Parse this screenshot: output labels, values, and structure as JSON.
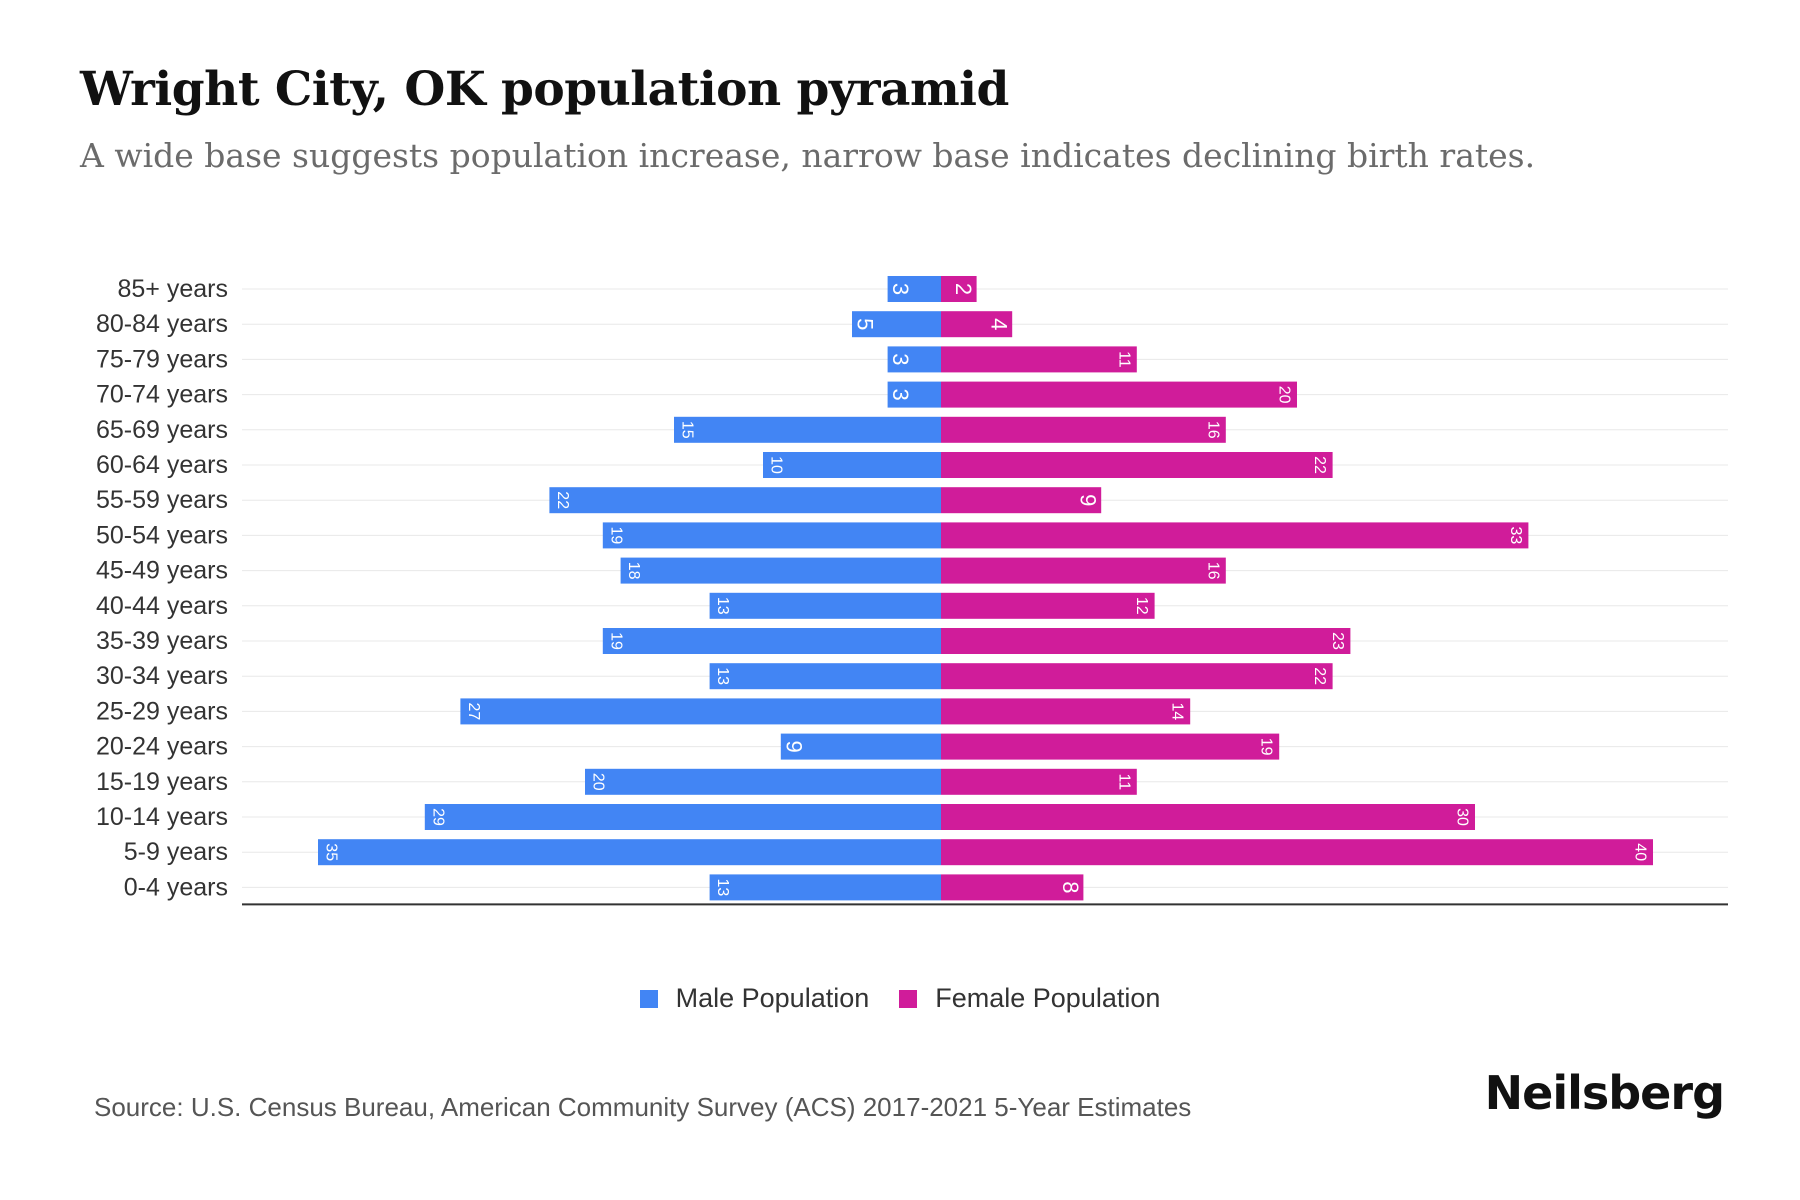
{
  "header": {
    "title": "Wright City, OK population pyramid",
    "subtitle": "A wide base suggests population increase, narrow base indicates declining birth rates."
  },
  "footer": {
    "source": "Source: U.S. Census Bureau, American Community Survey (ACS) 2017-2021 5-Year Estimates",
    "brand": "Neilsberg"
  },
  "colors": {
    "male": "#4285f4",
    "female": "#d01c9a",
    "grid": "#e8e8e8",
    "axis": "#333333"
  },
  "chart_data": {
    "type": "bar",
    "orientation": "horizontal",
    "title": "Wright City, OK population pyramid",
    "categories": [
      "85+ years",
      "80-84 years",
      "75-79 years",
      "70-74 years",
      "65-69 years",
      "60-64 years",
      "55-59 years",
      "50-54 years",
      "45-49 years",
      "40-44 years",
      "35-39 years",
      "30-34 years",
      "25-29 years",
      "20-24 years",
      "15-19 years",
      "10-14 years",
      "5-9 years",
      "0-4 years"
    ],
    "series": [
      {
        "name": "Male Population",
        "values": [
          3,
          5,
          3,
          3,
          15,
          10,
          22,
          19,
          18,
          13,
          19,
          13,
          27,
          9,
          20,
          29,
          35,
          13
        ]
      },
      {
        "name": "Female Population",
        "values": [
          2,
          4,
          11,
          20,
          16,
          22,
          9,
          33,
          16,
          12,
          23,
          22,
          14,
          19,
          11,
          30,
          40,
          8
        ]
      }
    ],
    "xlim": [
      -40,
      44
    ],
    "legend": "bottom-center",
    "grid": true
  }
}
